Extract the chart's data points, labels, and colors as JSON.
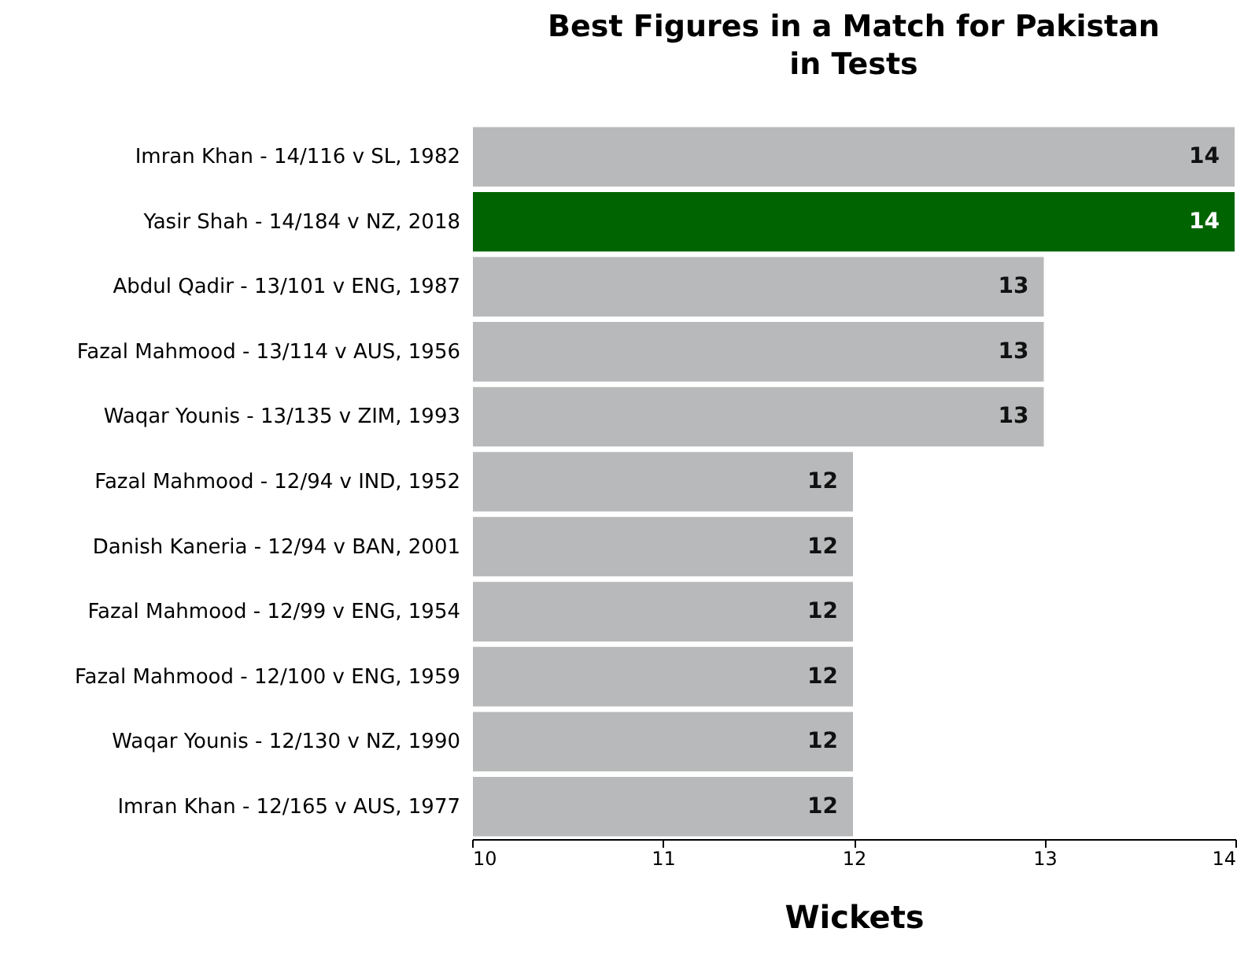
{
  "chart_data": {
    "type": "bar",
    "orientation": "horizontal",
    "title": "Best Figures in a Match for Pakistan\nin Tests",
    "xlabel": "Wickets",
    "categories": [
      "Imran Khan - 14/116 v SL, 1982",
      "Yasir Shah - 14/184 v NZ, 2018",
      "Abdul Qadir - 13/101 v ENG, 1987",
      "Fazal Mahmood - 13/114 v AUS, 1956",
      "Waqar Younis - 13/135 v ZIM, 1993",
      "Fazal Mahmood - 12/94 v IND, 1952",
      "Danish Kaneria - 12/94 v BAN, 2001",
      "Fazal Mahmood - 12/99 v ENG, 1954",
      "Fazal Mahmood - 12/100 v ENG, 1959",
      "Waqar Younis - 12/130 v NZ, 1990",
      "Imran Khan - 12/165 v AUS, 1977"
    ],
    "values": [
      14,
      14,
      13,
      13,
      13,
      12,
      12,
      12,
      12,
      12,
      12
    ],
    "colors": [
      "#b8b9ba",
      "#006400",
      "#b8b9ba",
      "#b8b9ba",
      "#b8b9ba",
      "#b8b9ba",
      "#b8b9ba",
      "#b8b9ba",
      "#b8b9ba",
      "#b8b9ba",
      "#b8b9ba"
    ],
    "xlim": [
      10,
      14
    ],
    "xticks": [
      10,
      11,
      12,
      13,
      14
    ],
    "data_labels": true,
    "grid": false
  }
}
